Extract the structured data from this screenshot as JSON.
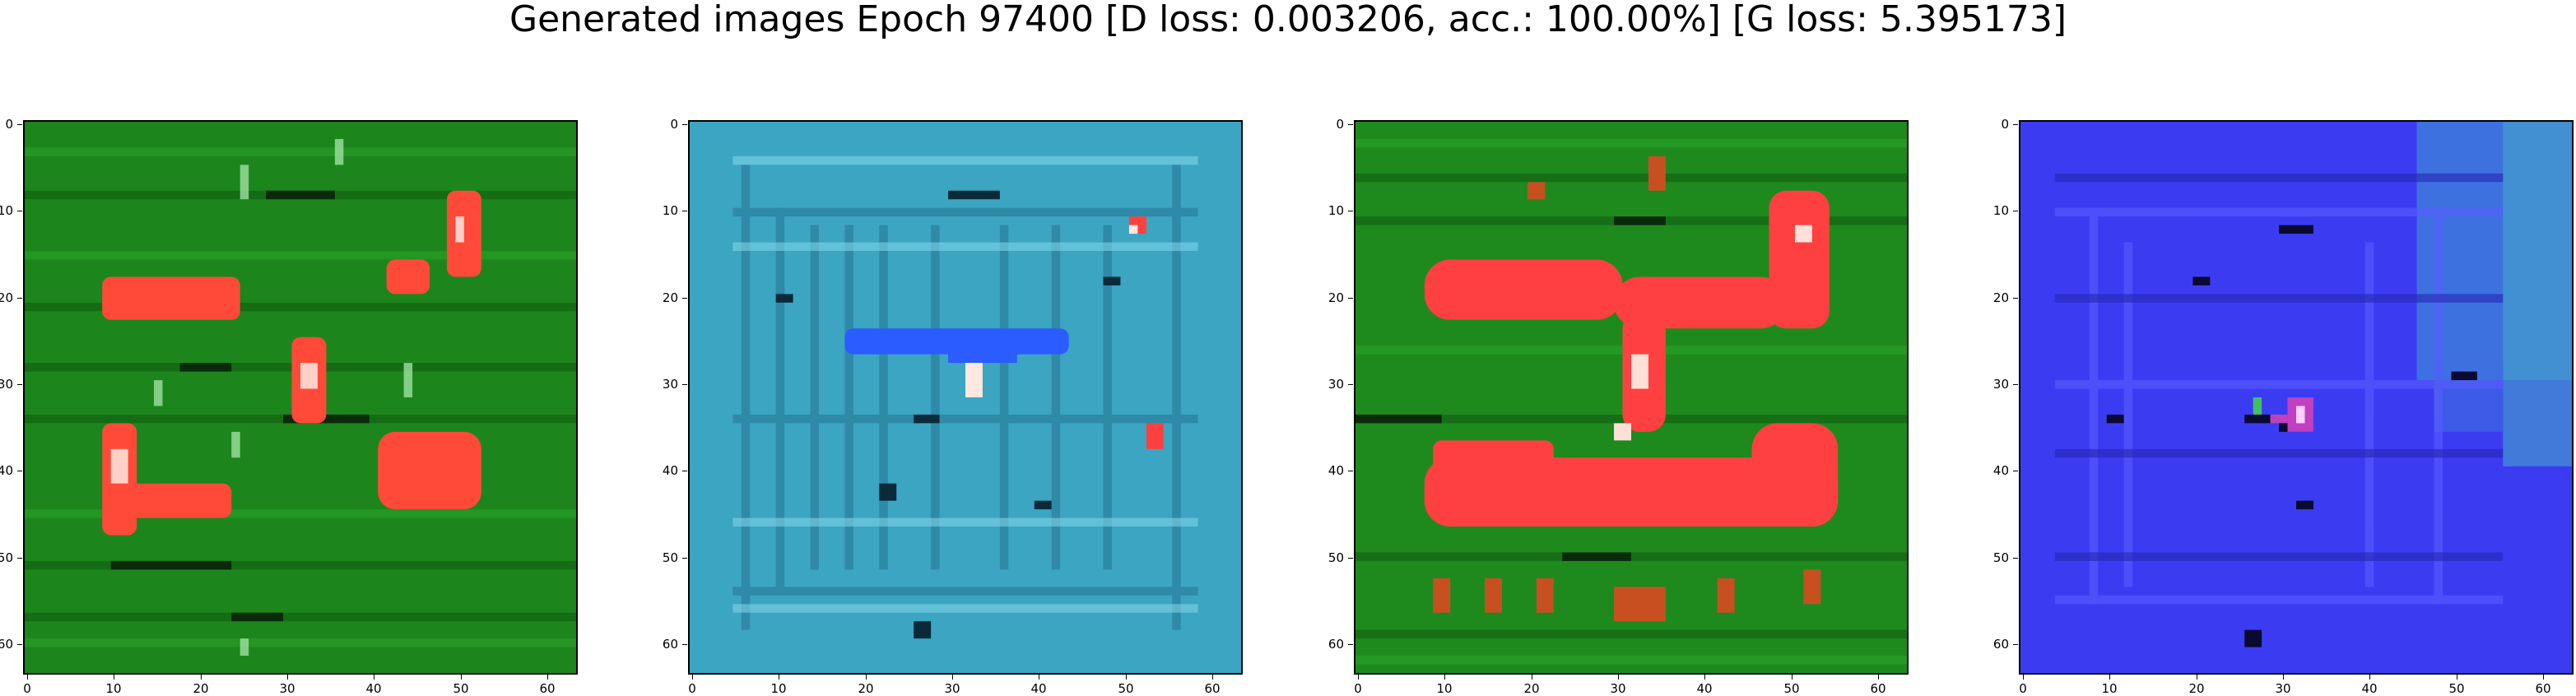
{
  "figure": {
    "title": "Generated images Epoch 97400 [D loss: 0.003206, acc.: 100.00%] [G loss: 5.395173]"
  },
  "axis_ticks": {
    "x": [
      "0",
      "10",
      "20",
      "30",
      "40",
      "50",
      "60"
    ],
    "y": [
      "0",
      "10",
      "20",
      "30",
      "40",
      "50",
      "60"
    ],
    "range": [
      0,
      63
    ]
  },
  "panels": [
    {
      "name": "sample-1",
      "dominant_color": "#1a8a1a",
      "feature_color": "#ff4a3a"
    },
    {
      "name": "sample-2",
      "dominant_color": "#3aa6c4",
      "feature_color": "#2a5cff"
    },
    {
      "name": "sample-3",
      "dominant_color": "#1e8c1e",
      "feature_color": "#ff4040"
    },
    {
      "name": "sample-4",
      "dominant_color": "#3a3cf0",
      "feature_color": "#c040c0"
    }
  ]
}
